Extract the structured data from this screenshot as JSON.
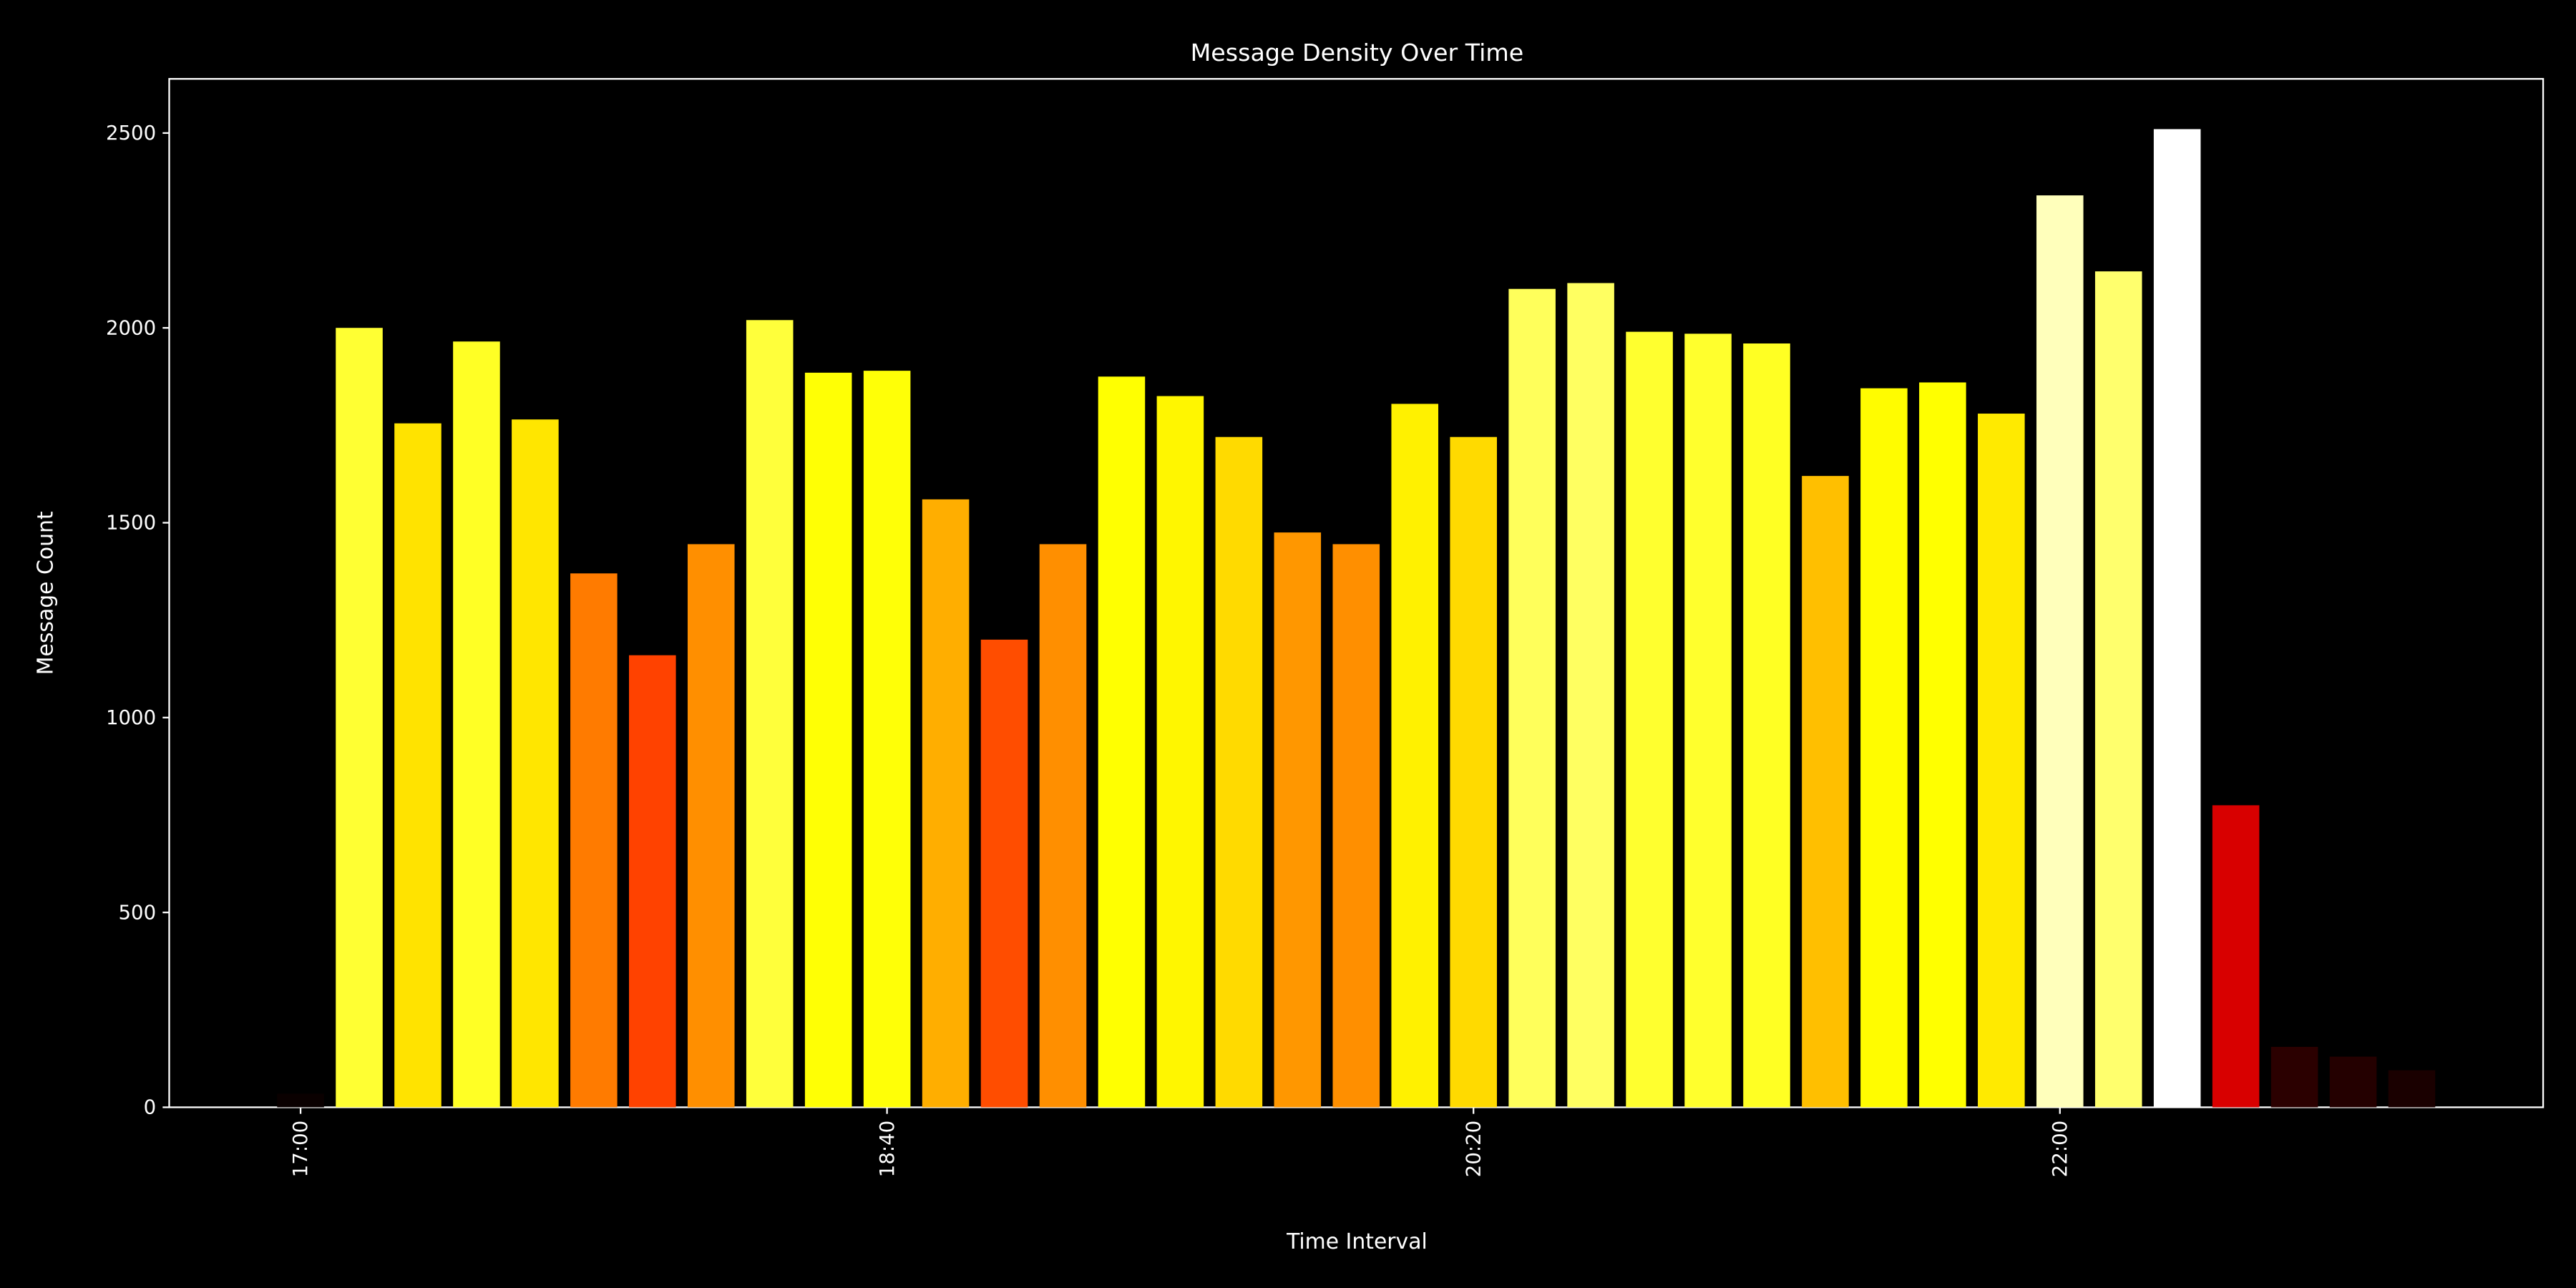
{
  "chart_data": {
    "type": "bar",
    "title": "Message Density Over Time",
    "x_label": "Time Interval",
    "y_label": "Message Count",
    "categories": [
      "17:00",
      null,
      null,
      null,
      null,
      null,
      null,
      null,
      null,
      null,
      "18:40",
      null,
      null,
      null,
      null,
      null,
      null,
      null,
      null,
      null,
      "20:20",
      null,
      null,
      null,
      null,
      null,
      null,
      null,
      null,
      null,
      "22:00",
      null,
      null,
      null,
      null,
      null,
      null
    ],
    "values": [
      35,
      2000,
      1755,
      1965,
      1765,
      1370,
      1160,
      1445,
      2020,
      1885,
      1890,
      1560,
      1200,
      1445,
      1875,
      1825,
      1720,
      1475,
      1445,
      1805,
      1720,
      2100,
      2115,
      1990,
      1985,
      1960,
      1620,
      1845,
      1860,
      1780,
      2340,
      2145,
      2510,
      775,
      155,
      130,
      95
    ],
    "colormap": "hot",
    "ylim": [
      0,
      2639
    ],
    "yticks": [
      0,
      500,
      1000,
      1500,
      2000,
      2500
    ],
    "grid": false
  }
}
